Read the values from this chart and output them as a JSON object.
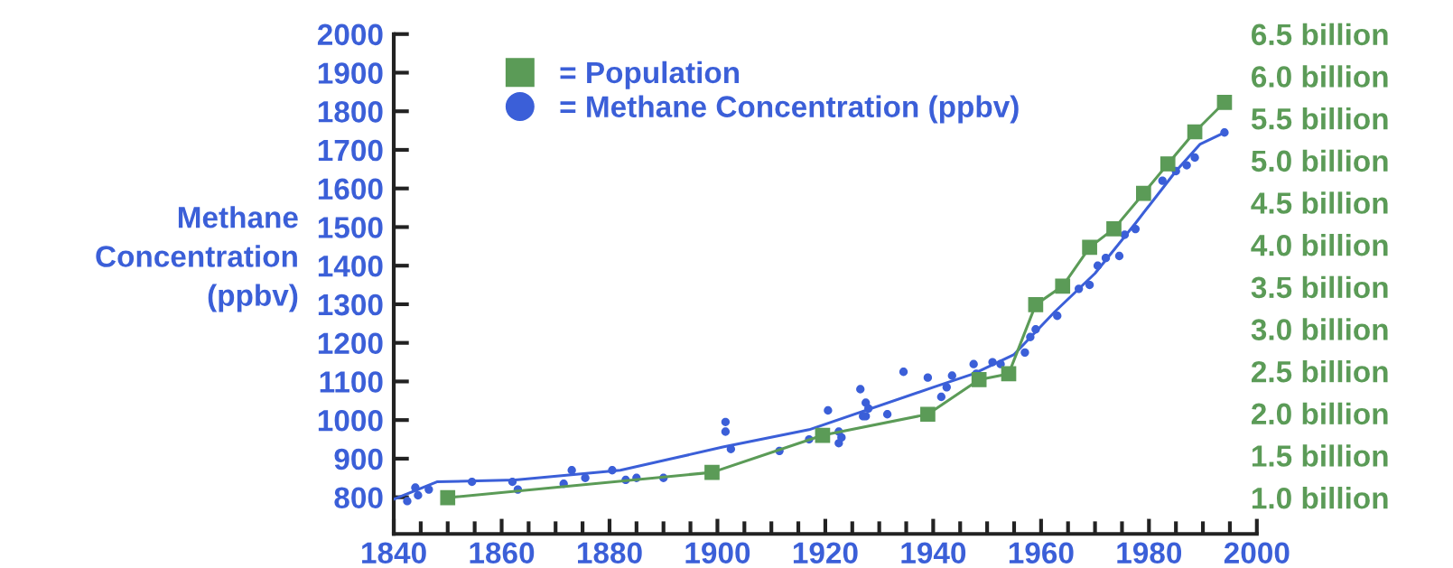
{
  "chart_data": {
    "type": "line",
    "ylabel": "Methane\nConcentration\n(ppbv)",
    "xlim": [
      1840,
      2000
    ],
    "xticks": [
      1840,
      {
        "value": 1845,
        "label": null
      },
      {
        "value": 1850,
        "label": null
      },
      {
        "value": 1855,
        "label": null
      },
      1860,
      {
        "value": 1865,
        "label": null
      },
      {
        "value": 1870,
        "label": null
      },
      {
        "value": 1875,
        "label": null
      },
      1880,
      {
        "value": 1885,
        "label": null
      },
      {
        "value": 1890,
        "label": null
      },
      {
        "value": 1895,
        "label": null
      },
      1900,
      {
        "value": 1905,
        "label": null
      },
      {
        "value": 1910,
        "label": null
      },
      {
        "value": 1915,
        "label": null
      },
      1920,
      {
        "value": 1925,
        "label": null
      },
      {
        "value": 1930,
        "label": null
      },
      {
        "value": 1935,
        "label": null
      },
      1940,
      {
        "value": 1945,
        "label": null
      },
      {
        "value": 1950,
        "label": null
      },
      {
        "value": 1955,
        "label": null
      },
      1960,
      {
        "value": 1965,
        "label": null
      },
      {
        "value": 1970,
        "label": null
      },
      {
        "value": 1975,
        "label": null
      },
      1980,
      {
        "value": 1985,
        "label": null
      },
      {
        "value": 1990,
        "label": null
      },
      {
        "value": 1995,
        "label": null
      },
      2000
    ],
    "ylim": [
      705,
      2000
    ],
    "yticks": [
      800,
      900,
      1000,
      1100,
      1200,
      1300,
      1400,
      1500,
      1600,
      1700,
      1800,
      1900,
      2000
    ],
    "y2lim": [
      0.57,
      6.5
    ],
    "y2ticks": [
      {
        "value": 1.0,
        "label": "1.0 billion"
      },
      {
        "value": 1.5,
        "label": "1.5 billion"
      },
      {
        "value": 2.0,
        "label": "2.0 billion"
      },
      {
        "value": 2.5,
        "label": "2.5 billion"
      },
      {
        "value": 3.0,
        "label": "3.0 billion"
      },
      {
        "value": 3.5,
        "label": "3.5 billion"
      },
      {
        "value": 4.0,
        "label": "4.0 billion"
      },
      {
        "value": 4.5,
        "label": "4.5 billion"
      },
      {
        "value": 5.0,
        "label": "5.0 billion"
      },
      {
        "value": 5.5,
        "label": "5.5 billion"
      },
      {
        "value": 6.0,
        "label": "6.0 billion"
      },
      {
        "value": 6.5,
        "label": "6.5 billion"
      }
    ],
    "grid": false,
    "legend": "top left",
    "series": [
      {
        "name": "= Population",
        "axis": "y2",
        "marker": "square",
        "color": "#5b9b57",
        "x": [
          1850,
          1899,
          1919.5,
          1939,
          1948.5,
          1954,
          1959,
          1964,
          1969,
          1973.5,
          1979,
          1983.5,
          1988.5,
          1994
        ],
        "values": [
          1.0,
          1.3,
          1.74,
          1.99,
          2.4,
          2.47,
          3.29,
          3.51,
          3.97,
          4.19,
          4.61,
          4.96,
          5.34,
          5.69
        ]
      },
      {
        "name": "= Methane Concentration (ppbv)",
        "type": "scatter",
        "marker": "circle",
        "color": "#3b5fd8",
        "x": [
          1842.5,
          1844,
          1844.5,
          1846.5,
          1854.5,
          1862,
          1863,
          1871.5,
          1873,
          1875.5,
          1880.5,
          1883,
          1885,
          1890,
          1901.5,
          1901.5,
          1902.5,
          1911.5,
          1917,
          1920.5,
          1922.5,
          1922.5,
          1923,
          1926.5,
          1927.5,
          1927,
          1928,
          1927.5,
          1931.5,
          1934.5,
          1939,
          1941.5,
          1942.5,
          1943.5,
          1947.5,
          1948,
          1951,
          1952.5,
          1957,
          1958,
          1959,
          1963,
          1967,
          1969,
          1970.5,
          1972,
          1974.5,
          1975.5,
          1977.5,
          1982.5,
          1985,
          1987,
          1988.5,
          1994
        ],
        "values": [
          790,
          825,
          805,
          820,
          840,
          840,
          820,
          835,
          870,
          850,
          870,
          845,
          850,
          850,
          995,
          970,
          925,
          920,
          950,
          1025,
          970,
          940,
          955,
          1080,
          1045,
          1010,
          1030,
          1010,
          1015,
          1125,
          1110,
          1060,
          1085,
          1115,
          1145,
          1120,
          1150,
          1145,
          1175,
          1215,
          1235,
          1270,
          1340,
          1350,
          1400,
          1420,
          1425,
          1480,
          1495,
          1620,
          1645,
          1660,
          1680,
          1745
        ]
      },
      {
        "marker": "none",
        "color": "#3b5fd8",
        "x": [
          1840,
          1848,
          1862.5,
          1882,
          1901,
          1917,
          1940,
          1947.5,
          1955,
          1962.5,
          1970,
          1977.5,
          1985,
          1989.5,
          1994
        ],
        "values": [
          795,
          840,
          845,
          870,
          930,
          975,
          1085,
          1120,
          1170,
          1280,
          1380,
          1510,
          1645,
          1715,
          1745
        ]
      }
    ]
  }
}
